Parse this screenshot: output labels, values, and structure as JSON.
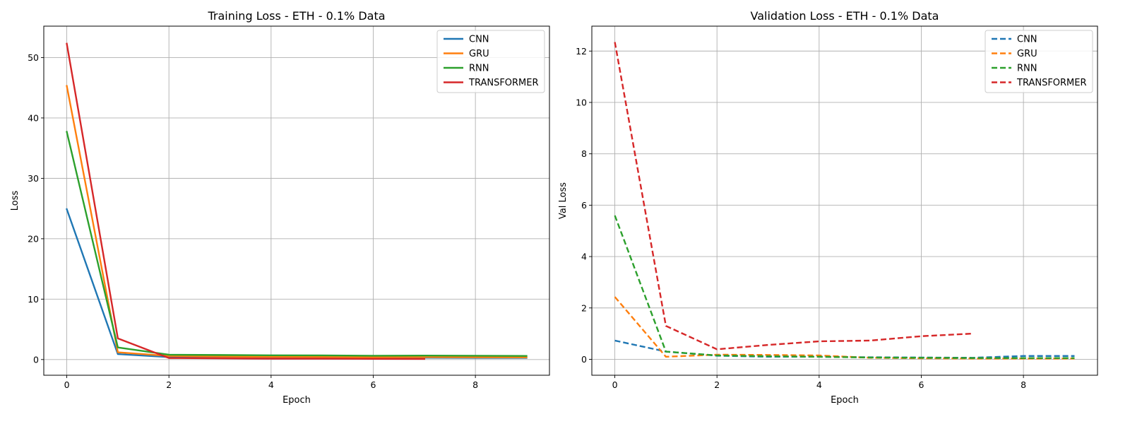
{
  "chart_data": [
    {
      "type": "line",
      "title": "Training Loss - ETH - 0.1% Data",
      "xlabel": "Epoch",
      "ylabel": "Loss",
      "xlim": [
        -0.45,
        9.45
      ],
      "ylim": [
        -2.6,
        55.2
      ],
      "xticks": [
        0,
        2,
        4,
        6,
        8
      ],
      "yticks": [
        0,
        10,
        20,
        30,
        40,
        50
      ],
      "grid": true,
      "legend_position": "top-right",
      "line_style": "solid",
      "series": [
        {
          "name": "CNN",
          "color": "#1f77b4",
          "x": [
            0,
            1,
            2,
            3,
            4,
            5,
            6,
            7,
            8,
            9
          ],
          "y": [
            24.9,
            0.9,
            0.4,
            0.35,
            0.33,
            0.32,
            0.3,
            0.3,
            0.28,
            0.27
          ]
        },
        {
          "name": "GRU",
          "color": "#ff7f0e",
          "x": [
            0,
            1,
            2,
            3,
            4,
            5,
            6,
            7,
            8,
            9
          ],
          "y": [
            45.3,
            1.2,
            0.6,
            0.5,
            0.45,
            0.42,
            0.4,
            0.4,
            0.38,
            0.37
          ]
        },
        {
          "name": "RNN",
          "color": "#2ca02c",
          "x": [
            0,
            1,
            2,
            3,
            4,
            5,
            6,
            7,
            8,
            9
          ],
          "y": [
            37.7,
            2.0,
            0.8,
            0.75,
            0.7,
            0.68,
            0.62,
            0.65,
            0.63,
            0.6
          ]
        },
        {
          "name": "TRANSFORMER",
          "color": "#d62728",
          "x": [
            0,
            1,
            2,
            3,
            4,
            5,
            6,
            7
          ],
          "y": [
            52.3,
            3.5,
            0.25,
            0.2,
            0.15,
            0.15,
            0.12,
            0.1
          ]
        }
      ]
    },
    {
      "type": "line",
      "title": "Validation Loss - ETH - 0.1% Data",
      "xlabel": "Epoch",
      "ylabel": "Val Loss",
      "xlim": [
        -0.45,
        9.45
      ],
      "ylim": [
        -0.62,
        12.97
      ],
      "xticks": [
        0,
        2,
        4,
        6,
        8
      ],
      "yticks": [
        0,
        2,
        4,
        6,
        8,
        10,
        12
      ],
      "grid": true,
      "legend_position": "top-right",
      "line_style": "dashed",
      "series": [
        {
          "name": "CNN",
          "color": "#1f77b4",
          "x": [
            0,
            1,
            2,
            3,
            4,
            5,
            6,
            7,
            8,
            9
          ],
          "y": [
            0.73,
            0.3,
            0.14,
            0.1,
            0.1,
            0.08,
            0.07,
            0.06,
            0.13,
            0.13
          ]
        },
        {
          "name": "GRU",
          "color": "#ff7f0e",
          "x": [
            0,
            1,
            2,
            3,
            4,
            5,
            6,
            7,
            8,
            9
          ],
          "y": [
            2.43,
            0.1,
            0.18,
            0.17,
            0.15,
            0.06,
            0.04,
            0.03,
            0.03,
            0.03
          ]
        },
        {
          "name": "RNN",
          "color": "#2ca02c",
          "x": [
            0,
            1,
            2,
            3,
            4,
            5,
            6,
            7,
            8,
            9
          ],
          "y": [
            5.6,
            0.3,
            0.15,
            0.12,
            0.1,
            0.07,
            0.06,
            0.05,
            0.05,
            0.05
          ]
        },
        {
          "name": "TRANSFORMER",
          "color": "#d62728",
          "x": [
            0,
            1,
            2,
            3,
            4,
            5,
            6,
            7
          ],
          "y": [
            12.35,
            1.3,
            0.39,
            0.56,
            0.7,
            0.73,
            0.9,
            1.0
          ]
        }
      ]
    }
  ]
}
